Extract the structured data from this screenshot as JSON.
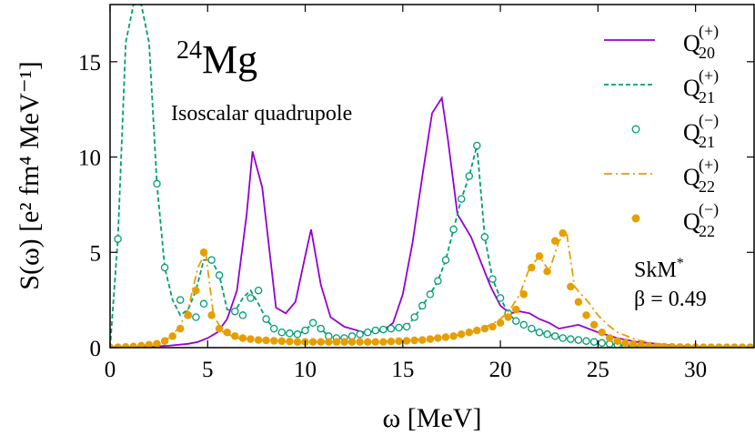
{
  "chart_data": {
    "type": "line",
    "title": "",
    "xlabel": "ω [MeV]",
    "ylabel": "S(ω) [e² fm⁴ MeV⁻¹]",
    "xlim": [
      0,
      33
    ],
    "ylim": [
      0,
      18
    ],
    "xticks": [
      0,
      5,
      10,
      15,
      20,
      25,
      30
    ],
    "yticks": [
      0,
      5,
      10,
      15
    ],
    "grid": false,
    "legend_position": "top-right",
    "annotations": {
      "nucleus_mass": "24",
      "nucleus_symbol": "Mg",
      "mode": "Isoscalar quadrupole",
      "interaction": "SkM",
      "interaction_sup": "*",
      "deformation": "β = 0.49"
    },
    "series": [
      {
        "name": "Q20(+)",
        "label_main": "Q",
        "label_sub": "20",
        "label_sup": "(+)",
        "color": "#9400d3",
        "style": "solid",
        "x": [
          0,
          2,
          3,
          4,
          4.5,
          5,
          5.5,
          6,
          6.5,
          7,
          7.3,
          7.8,
          8.5,
          9,
          9.5,
          10,
          10.3,
          10.8,
          11.3,
          12,
          13,
          14,
          14.5,
          15,
          15.5,
          16,
          16.5,
          17,
          17.3,
          17.8,
          18.5,
          19,
          19.5,
          20,
          20.5,
          21,
          21.5,
          22,
          22.5,
          23,
          24,
          25,
          26,
          27,
          28,
          29,
          30,
          31,
          32,
          33
        ],
        "y": [
          0,
          0.05,
          0.1,
          0.2,
          0.3,
          0.5,
          0.8,
          1.5,
          3,
          7,
          10.3,
          8.4,
          2.1,
          1.8,
          2.4,
          4.8,
          6.2,
          3.3,
          1.6,
          1.1,
          0.8,
          0.9,
          1.3,
          2.8,
          5.5,
          9,
          12.3,
          13.1,
          11,
          7,
          5.8,
          4.5,
          3.2,
          2.2,
          1.8,
          1.9,
          1.8,
          1.5,
          1.3,
          1.0,
          1.2,
          0.8,
          0.5,
          0.3,
          0.2,
          0.1,
          0.05,
          0.03,
          0.02,
          0.01
        ]
      },
      {
        "name": "Q21(+)",
        "label_main": "Q",
        "label_sub": "21",
        "label_sup": "(+)",
        "color": "#009e73",
        "style": "dashed",
        "x": [
          0,
          0.4,
          0.8,
          1.2,
          1.6,
          2.0,
          2.4,
          2.8,
          3.2,
          3.6,
          4.0,
          4.4,
          4.8,
          5.2,
          5.6,
          6.0,
          6.4,
          6.8,
          7.2,
          7.6,
          8.0,
          8.4,
          8.8,
          9.2,
          9.6,
          10.0,
          10.4,
          10.8,
          11.2,
          11.6,
          12.0,
          12.4,
          12.8,
          13.2,
          13.6,
          14.0,
          14.4,
          14.8,
          15.2,
          15.6,
          16.0,
          16.4,
          16.8,
          17.2,
          17.6,
          18.0,
          18.4,
          18.8,
          19.2,
          19.6,
          20.0,
          20.4,
          20.8,
          21.2,
          21.6,
          22.0,
          22.4,
          22.8,
          23.2,
          23.6,
          24.0,
          24.4,
          24.8,
          25.2,
          25.6,
          26.0,
          26.4,
          26.8,
          27.2,
          27.6,
          28.0,
          28.4,
          28.8,
          29.2,
          29.6,
          30.0,
          30.4,
          30.8,
          31.2,
          31.6,
          32.0,
          32.4,
          32.8
        ],
        "y": [
          0,
          5.7,
          16,
          18,
          18,
          16,
          8.6,
          4.2,
          2.5,
          1.7,
          2.0,
          3.0,
          4.6,
          4.6,
          3.8,
          2.0,
          1.9,
          2.6,
          3.0,
          2.3,
          1.5,
          1.0,
          0.8,
          0.75,
          0.7,
          0.9,
          1.3,
          1.0,
          0.6,
          0.5,
          0.5,
          0.6,
          0.7,
          0.8,
          0.9,
          0.95,
          1.0,
          1.05,
          1.1,
          1.6,
          2.2,
          2.8,
          3.5,
          4.6,
          6.2,
          7.8,
          9.0,
          10.6,
          5.8,
          3.6,
          2.6,
          1.8,
          1.4,
          1.2,
          1.0,
          0.8,
          0.7,
          0.6,
          0.5,
          0.45,
          0.4,
          0.35,
          0.3,
          0.25,
          0.2,
          0.15,
          0.12,
          0.1,
          0.08,
          0.06,
          0.05,
          0.04,
          0.03,
          0.02,
          0.02,
          0.01,
          0.01,
          0.01,
          0.01,
          0.01,
          0.01,
          0.01,
          0.01
        ]
      },
      {
        "name": "Q21(-)",
        "label_main": "Q",
        "label_sub": "21",
        "label_sup": "(−)",
        "color": "#009e73",
        "style": "open-circles",
        "x": [
          0,
          0.4,
          2.4,
          2.8,
          3.6,
          4.0,
          4.4,
          4.8,
          5.2,
          5.6,
          6.4,
          6.8,
          7.2,
          7.6,
          8.0,
          8.4,
          8.8,
          9.2,
          9.6,
          10.0,
          10.4,
          10.8,
          11.2,
          11.6,
          12.0,
          12.4,
          12.8,
          13.2,
          13.6,
          14.0,
          14.4,
          14.8,
          15.2,
          15.6,
          16.0,
          16.4,
          16.8,
          17.2,
          17.6,
          18.0,
          18.4,
          18.8,
          19.2,
          19.6,
          20.0,
          20.4,
          20.8,
          21.2,
          21.6,
          22.0,
          22.4,
          22.8,
          23.2,
          23.6,
          24.0,
          24.4,
          24.8,
          25.2,
          25.6,
          26.0,
          26.4,
          26.8,
          27.2,
          27.6,
          28.0,
          28.4,
          28.8,
          29.2,
          29.6,
          30.0,
          30.4,
          30.8,
          31.2,
          31.6,
          32.0,
          32.4,
          32.8
        ],
        "y": [
          0,
          5.7,
          8.6,
          4.2,
          2.5,
          1.7,
          1.6,
          2.3,
          4.6,
          3.8,
          1.9,
          1.7,
          2.6,
          3.0,
          1.5,
          1.0,
          0.8,
          0.75,
          0.7,
          0.9,
          1.3,
          1.0,
          0.6,
          0.5,
          0.5,
          0.6,
          0.7,
          0.8,
          0.9,
          0.95,
          1.0,
          1.05,
          1.1,
          1.6,
          2.2,
          2.8,
          3.5,
          4.6,
          6.2,
          7.8,
          9.0,
          10.6,
          5.8,
          3.6,
          2.6,
          1.8,
          1.4,
          1.2,
          1.0,
          0.8,
          0.7,
          0.6,
          0.5,
          0.45,
          0.4,
          0.35,
          0.3,
          0.25,
          0.2,
          0.15,
          0.12,
          0.1,
          0.08,
          0.06,
          0.05,
          0.04,
          0.03,
          0.02,
          0.02,
          0.01,
          0.01,
          0.01,
          0.01,
          0.01,
          0.01,
          0.01,
          0.01
        ]
      },
      {
        "name": "Q22(+)",
        "label_main": "Q",
        "label_sub": "22",
        "label_sup": "(+)",
        "color": "#e69f00",
        "style": "dash-dot",
        "x": [
          0,
          0.5,
          1,
          1.5,
          2,
          2.5,
          3,
          3.5,
          4,
          4.5,
          4.9,
          5.3,
          5.8,
          6.5,
          7.5,
          8.5,
          9.5,
          10.5,
          11.5,
          12.5,
          13.5,
          14.5,
          15.5,
          16.5,
          17.5,
          18.5,
          19,
          19.5,
          20,
          20.5,
          21,
          21.5,
          22,
          22.5,
          23,
          23.4,
          23.8,
          24.5,
          25,
          25.5,
          26,
          27,
          28,
          29,
          30,
          31,
          32,
          33
        ],
        "y": [
          0,
          0.02,
          0.05,
          0.1,
          0.15,
          0.3,
          0.5,
          1.0,
          2.0,
          4.2,
          5.0,
          1.7,
          0.8,
          0.5,
          0.4,
          0.35,
          0.3,
          0.3,
          0.3,
          0.3,
          0.3,
          0.35,
          0.4,
          0.5,
          0.6,
          0.8,
          1.0,
          1.2,
          1.5,
          2.0,
          2.8,
          4.2,
          4.8,
          4.0,
          5.6,
          6.0,
          3.2,
          2.4,
          1.7,
          1.2,
          0.8,
          0.4,
          0.2,
          0.1,
          0.05,
          0.03,
          0.02,
          0.01
        ]
      },
      {
        "name": "Q22(-)",
        "label_main": "Q",
        "label_sub": "22",
        "label_sup": "(−)",
        "color": "#e69f00",
        "style": "filled-circles",
        "x": [
          0,
          0.4,
          0.8,
          1.2,
          1.6,
          2.0,
          2.4,
          2.8,
          3.2,
          3.6,
          4.0,
          4.4,
          4.8,
          5.2,
          5.6,
          6.0,
          6.4,
          6.8,
          7.2,
          7.6,
          8.0,
          8.4,
          8.8,
          9.2,
          9.6,
          10.0,
          10.4,
          10.8,
          11.2,
          11.6,
          12.0,
          12.4,
          12.8,
          13.2,
          13.6,
          14.0,
          14.4,
          14.8,
          15.2,
          15.6,
          16.0,
          16.4,
          16.8,
          17.2,
          17.6,
          18.0,
          18.4,
          18.8,
          19.2,
          19.6,
          20.0,
          20.4,
          20.8,
          21.2,
          21.6,
          22.0,
          22.4,
          22.8,
          23.2,
          23.6,
          24.0,
          24.4,
          24.8,
          25.2,
          25.6,
          26.0,
          26.4,
          26.8,
          27.2,
          27.6,
          28.0,
          28.4,
          28.8,
          29.2,
          29.6,
          30.0,
          30.4,
          30.8,
          31.2,
          31.6,
          32.0,
          32.4,
          32.8
        ],
        "y": [
          0,
          0.02,
          0.04,
          0.06,
          0.1,
          0.15,
          0.2,
          0.35,
          0.6,
          1.0,
          1.7,
          3.0,
          5.0,
          1.7,
          1.0,
          0.8,
          0.6,
          0.5,
          0.45,
          0.4,
          0.38,
          0.36,
          0.34,
          0.32,
          0.3,
          0.3,
          0.3,
          0.3,
          0.3,
          0.3,
          0.3,
          0.3,
          0.3,
          0.3,
          0.3,
          0.3,
          0.32,
          0.34,
          0.36,
          0.38,
          0.4,
          0.45,
          0.5,
          0.55,
          0.6,
          0.7,
          0.8,
          0.9,
          1.0,
          1.1,
          1.3,
          1.6,
          2.0,
          2.8,
          4.2,
          4.8,
          4.0,
          5.6,
          6.0,
          3.2,
          2.4,
          1.7,
          1.2,
          0.8,
          0.5,
          0.35,
          0.25,
          0.18,
          0.12,
          0.08,
          0.06,
          0.05,
          0.04,
          0.03,
          0.02,
          0.02,
          0.01,
          0.01,
          0.01,
          0.01,
          0.01,
          0.01,
          0.01
        ]
      }
    ]
  }
}
